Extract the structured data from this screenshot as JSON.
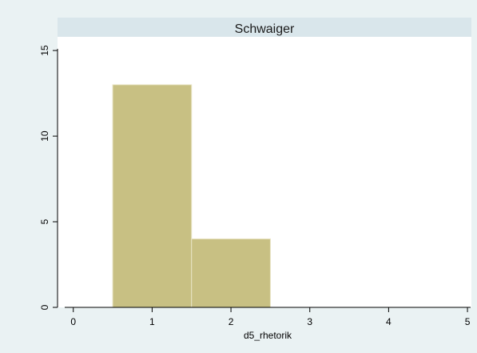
{
  "chart_data": {
    "type": "bar",
    "title": "Schwaiger",
    "xlabel": "d5_rhetorik",
    "ylabel": "",
    "xlim": [
      -0.2,
      5.05
    ],
    "ylim": [
      0,
      15.8
    ],
    "xticks": [
      0,
      1,
      2,
      3,
      4,
      5
    ],
    "yticks": [
      0,
      5,
      10,
      15
    ],
    "bins": [
      {
        "x0": 0.5,
        "x1": 1.5,
        "value": 13
      },
      {
        "x0": 1.5,
        "x1": 2.5,
        "value": 4
      }
    ],
    "grid": false,
    "colors": {
      "background": "#eaf2f3",
      "plot_area": "#ffffff",
      "title_band": "#d9e6eb",
      "bar_fill": "#c8c083",
      "bar_edge": "#e8e4c4"
    }
  }
}
